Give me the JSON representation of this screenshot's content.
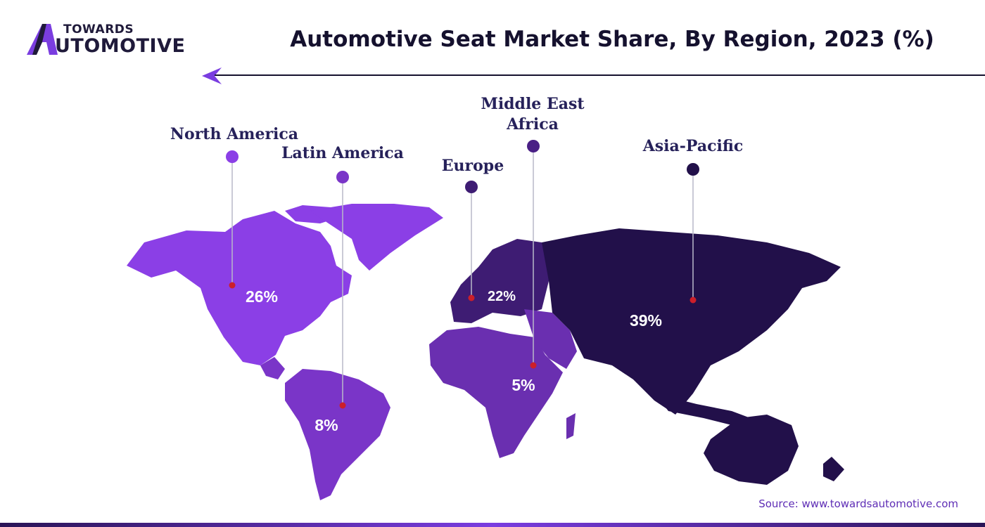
{
  "brand": {
    "logo_top": "TOWARDS",
    "logo_bottom": "UTOMOTIVE"
  },
  "header": {
    "title": "Automotive Seat Market Share, By Region, 2023 (%)"
  },
  "footer": {
    "source": "Source: www.towardsautomotive.com"
  },
  "colors": {
    "north_america": "#8b3fe6",
    "latin_america": "#7a35c8",
    "europe": "#3e1c73",
    "middle_east_africa": "#6a2fb0",
    "asia_pacific": "#22104a",
    "label_text": "#26215a",
    "marker_red": "#cc1f2a",
    "leader_line": "#b9b9c9"
  },
  "chart_data": {
    "type": "map",
    "title": "Automotive Seat Market Share, By Region, 2023 (%)",
    "unit": "%",
    "regions": [
      {
        "name": "North America",
        "name_lines": [
          "North America"
        ],
        "value": 26,
        "value_label": "26%",
        "dot_color": "#8b3fe6"
      },
      {
        "name": "Latin America",
        "name_lines": [
          "Latin America"
        ],
        "value": 8,
        "value_label": "8%",
        "dot_color": "#7a35c8"
      },
      {
        "name": "Europe",
        "name_lines": [
          "Europe"
        ],
        "value": 22,
        "value_label": "22%",
        "dot_color": "#3e1c73"
      },
      {
        "name": "Middle East Africa",
        "name_lines": [
          "Middle East",
          "Africa"
        ],
        "value": 5,
        "value_label": "5%",
        "dot_color": "#4a2085"
      },
      {
        "name": "Asia-Pacific",
        "name_lines": [
          "Asia-Pacific"
        ],
        "value": 39,
        "value_label": "39%",
        "dot_color": "#22104a"
      }
    ]
  }
}
